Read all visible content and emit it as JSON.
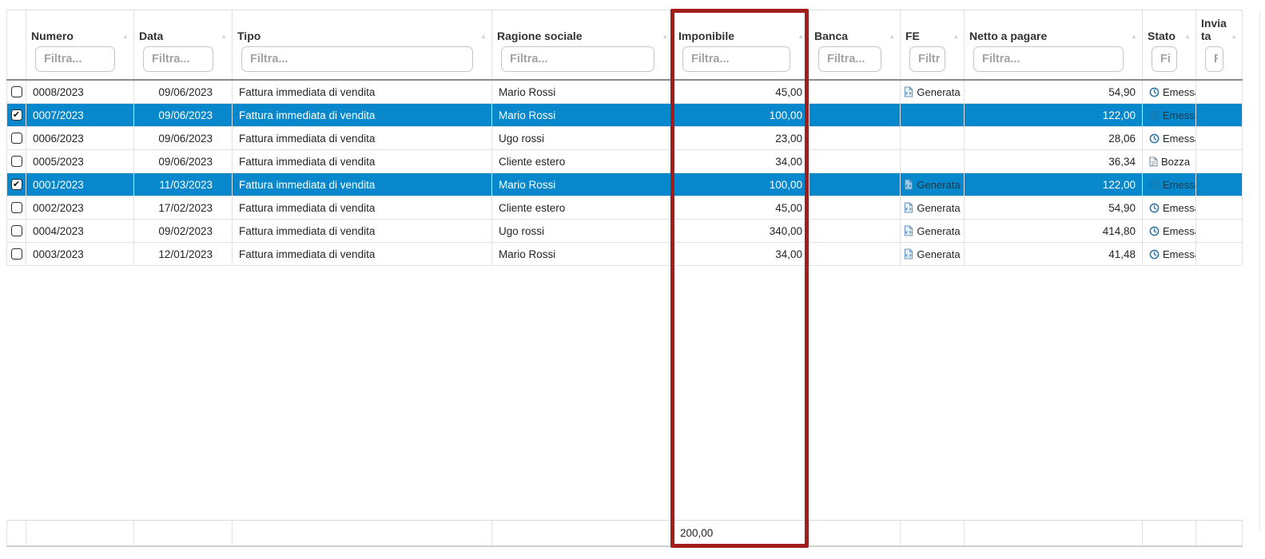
{
  "colors": {
    "selected_row": "#0788cc",
    "annotation_box": "#a31d1d",
    "generata_icon": "#4d87b5",
    "emessa_icon": "#2a6f9e",
    "bozza_icon": "#7f8f9b"
  },
  "annotation": {
    "type": "highlight-rectangle",
    "highlighted_column": "Imponibile"
  },
  "table": {
    "columns": [
      {
        "key": "select",
        "label": "",
        "filter_placeholder": null,
        "sortable": false
      },
      {
        "key": "numero",
        "label": "Numero",
        "filter_placeholder": "Filtra...",
        "sortable": true
      },
      {
        "key": "data",
        "label": "Data",
        "filter_placeholder": "Filtra...",
        "sortable": true
      },
      {
        "key": "tipo",
        "label": "Tipo",
        "filter_placeholder": "Filtra...",
        "sortable": true
      },
      {
        "key": "ragione_sociale",
        "label": "Ragione sociale",
        "filter_placeholder": "Filtra...",
        "sortable": true
      },
      {
        "key": "imponibile",
        "label": "Imponibile",
        "filter_placeholder": "Filtra...",
        "sortable": true
      },
      {
        "key": "banca",
        "label": "Banca",
        "filter_placeholder": "Filtra...",
        "sortable": true
      },
      {
        "key": "fe",
        "label": "FE",
        "filter_placeholder": "Filtra...",
        "sortable": true
      },
      {
        "key": "netto_a_pagare",
        "label": "Netto a pagare",
        "filter_placeholder": "Filtra...",
        "sortable": true
      },
      {
        "key": "stato",
        "label": "Stato",
        "filter_placeholder": "Filtra...",
        "sortable": true
      },
      {
        "key": "inviata",
        "label": "Inviata",
        "filter_placeholder": "Filtra...",
        "sortable": true
      }
    ],
    "rows": [
      {
        "selected": false,
        "numero": "0008/2023",
        "data": "09/06/2023",
        "tipo": "Fattura immediata di vendita",
        "ragione_sociale": "Mario Rossi",
        "imponibile": "45,00",
        "banca": "",
        "fe": {
          "label": "Generata",
          "icon": "xml-file-icon"
        },
        "netto_a_pagare": "54,90",
        "stato": {
          "label": "Emessa",
          "icon": "clock-icon"
        },
        "inviata": ""
      },
      {
        "selected": true,
        "numero": "0007/2023",
        "data": "09/06/2023",
        "tipo": "Fattura immediata di vendita",
        "ragione_sociale": "Mario Rossi",
        "imponibile": "100,00",
        "banca": "",
        "fe": null,
        "netto_a_pagare": "122,00",
        "stato": {
          "label": "Emessa",
          "icon": "clock-icon"
        },
        "inviata": ""
      },
      {
        "selected": false,
        "numero": "0006/2023",
        "data": "09/06/2023",
        "tipo": "Fattura immediata di vendita",
        "ragione_sociale": "Ugo rossi",
        "imponibile": "23,00",
        "banca": "",
        "fe": null,
        "netto_a_pagare": "28,06",
        "stato": {
          "label": "Emessa",
          "icon": "clock-icon"
        },
        "inviata": ""
      },
      {
        "selected": false,
        "numero": "0005/2023",
        "data": "09/06/2023",
        "tipo": "Fattura immediata di vendita",
        "ragione_sociale": "Cliente estero",
        "imponibile": "34,00",
        "banca": "",
        "fe": null,
        "netto_a_pagare": "36,34",
        "stato": {
          "label": "Bozza",
          "icon": "draft-icon"
        },
        "inviata": ""
      },
      {
        "selected": true,
        "numero": "0001/2023",
        "data": "11/03/2023",
        "tipo": "Fattura immediata di vendita",
        "ragione_sociale": "Mario Rossi",
        "imponibile": "100,00",
        "banca": "",
        "fe": {
          "label": "Generata",
          "icon": "xml-file-icon"
        },
        "netto_a_pagare": "122,00",
        "stato": {
          "label": "Emessa",
          "icon": "clock-icon"
        },
        "inviata": ""
      },
      {
        "selected": false,
        "numero": "0002/2023",
        "data": "17/02/2023",
        "tipo": "Fattura immediata di vendita",
        "ragione_sociale": "Cliente estero",
        "imponibile": "45,00",
        "banca": "",
        "fe": {
          "label": "Generata",
          "icon": "xml-file-icon"
        },
        "netto_a_pagare": "54,90",
        "stato": {
          "label": "Emessa",
          "icon": "clock-icon"
        },
        "inviata": ""
      },
      {
        "selected": false,
        "numero": "0004/2023",
        "data": "09/02/2023",
        "tipo": "Fattura immediata di vendita",
        "ragione_sociale": "Ugo rossi",
        "imponibile": "340,00",
        "banca": "",
        "fe": {
          "label": "Generata",
          "icon": "xml-file-icon"
        },
        "netto_a_pagare": "414,80",
        "stato": {
          "label": "Emessa",
          "icon": "clock-icon"
        },
        "inviata": ""
      },
      {
        "selected": false,
        "numero": "0003/2023",
        "data": "12/01/2023",
        "tipo": "Fattura immediata di vendita",
        "ragione_sociale": "Mario Rossi",
        "imponibile": "34,00",
        "banca": "",
        "fe": {
          "label": "Generata",
          "icon": "xml-file-icon"
        },
        "netto_a_pagare": "41,48",
        "stato": {
          "label": "Emessa",
          "icon": "clock-icon"
        },
        "inviata": ""
      }
    ],
    "footer": {
      "imponibile_total": "200,00"
    }
  }
}
